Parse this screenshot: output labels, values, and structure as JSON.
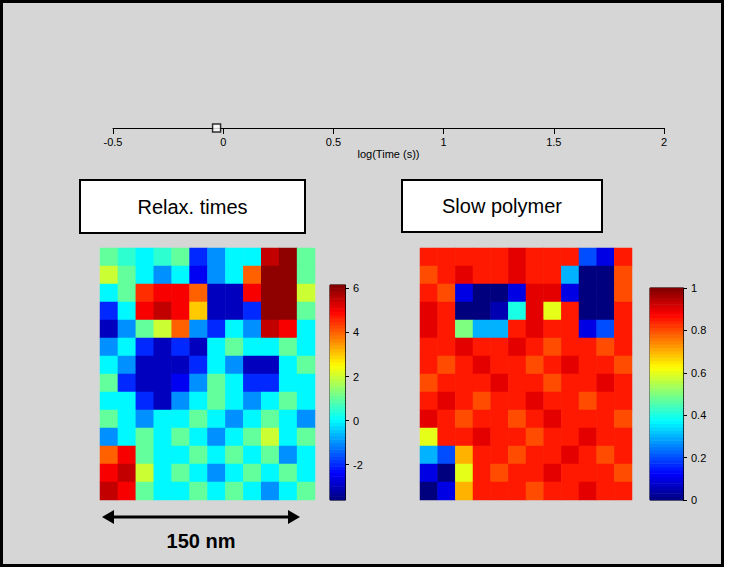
{
  "chart_data": [
    {
      "type": "scatter",
      "x": [
        -0.03
      ],
      "xlabel": "log(Time (s))",
      "xlim": [
        -0.5,
        2
      ],
      "xticks": [
        -0.5,
        0,
        0.5,
        1,
        1.5,
        2
      ],
      "marker": "square",
      "tick_labels": "x"
    },
    {
      "type": "heatmap",
      "title": "Relax. times",
      "cells": [
        [
          1,
          0.5,
          0,
          0.5,
          1,
          -2,
          -1,
          0,
          0,
          5.5,
          6,
          1
        ],
        [
          2,
          1,
          0,
          -1,
          0,
          -2.5,
          -1,
          0,
          4,
          6,
          6,
          1
        ],
        [
          0,
          1,
          4.5,
          5,
          5,
          4,
          -3,
          -3,
          5,
          6,
          6,
          2
        ],
        [
          -2,
          0,
          5,
          5.5,
          5,
          3,
          -3,
          -3,
          -2,
          6,
          6,
          1
        ],
        [
          -3,
          -1,
          1,
          2,
          4,
          -1,
          -2,
          0,
          -1,
          5.5,
          5,
          0
        ],
        [
          -1,
          0,
          -2,
          -3,
          -2,
          -3,
          0,
          1,
          0,
          0,
          1,
          0
        ],
        [
          0,
          -1,
          -3,
          -3,
          -3,
          -2,
          0,
          -1,
          -3,
          -3,
          0,
          1
        ],
        [
          1,
          -2,
          -3,
          -3,
          -2.5,
          -1,
          1,
          0,
          -2,
          -2,
          0,
          0
        ],
        [
          0,
          0,
          -2,
          -3,
          -1,
          0,
          1,
          0,
          -1,
          0,
          1,
          0
        ],
        [
          1,
          0,
          -1,
          0,
          0,
          1,
          0,
          -1,
          0,
          1,
          0,
          -1
        ],
        [
          -1,
          0,
          1,
          0,
          1,
          0,
          -1,
          0,
          1,
          2,
          0,
          1
        ],
        [
          4,
          5,
          1,
          0,
          0,
          1,
          0,
          1,
          0,
          1,
          -1,
          0
        ],
        [
          5,
          5.5,
          2,
          0,
          1,
          0,
          -1,
          0,
          1,
          0,
          1,
          0
        ],
        [
          5.5,
          5,
          1,
          0,
          0,
          1,
          0,
          1,
          0,
          -1,
          0,
          1
        ]
      ],
      "colorbar": {
        "lim": [
          -3.6,
          6.15
        ],
        "ticks": [
          -2,
          0,
          2,
          4,
          6
        ]
      }
    },
    {
      "type": "heatmap",
      "title": "Slow polymer",
      "cells": [
        [
          0.85,
          0.85,
          0.85,
          0.85,
          0.85,
          0.9,
          0.85,
          0.85,
          0.85,
          0.2,
          0.1,
          0.85
        ],
        [
          0.8,
          0.85,
          0.9,
          0.85,
          0.85,
          0.9,
          0.85,
          0.85,
          0.3,
          0,
          0,
          0.8
        ],
        [
          0.85,
          0.8,
          0.1,
          0,
          0,
          0.1,
          0.9,
          0.9,
          0.1,
          0,
          0,
          0.8
        ],
        [
          0.9,
          0.85,
          0,
          0,
          0.05,
          0.4,
          0.9,
          0.6,
          0.85,
          0,
          0,
          0.85
        ],
        [
          0.9,
          0.85,
          0.5,
          0.3,
          0.3,
          0.85,
          0.9,
          0.85,
          0.85,
          0.1,
          0.2,
          0.85
        ],
        [
          0.85,
          0.85,
          0.9,
          0.85,
          0.85,
          0.9,
          0.85,
          0.8,
          0.85,
          0.85,
          0.8,
          0.85
        ],
        [
          0.85,
          0.8,
          0.85,
          0.9,
          0.85,
          0.85,
          0.8,
          0.85,
          0.9,
          0.85,
          0.85,
          0.8
        ],
        [
          0.8,
          0.85,
          0.85,
          0.85,
          0.9,
          0.85,
          0.85,
          0.8,
          0.85,
          0.85,
          0.9,
          0.85
        ],
        [
          0.85,
          0.9,
          0.85,
          0.8,
          0.85,
          0.85,
          0.9,
          0.85,
          0.85,
          0.8,
          0.85,
          0.85
        ],
        [
          0.9,
          0.85,
          0.8,
          0.85,
          0.85,
          0.8,
          0.85,
          0.9,
          0.85,
          0.85,
          0.85,
          0.8
        ],
        [
          0.6,
          0.85,
          0.85,
          0.9,
          0.85,
          0.85,
          0.8,
          0.85,
          0.85,
          0.9,
          0.85,
          0.85
        ],
        [
          0.3,
          0.2,
          0.7,
          0.85,
          0.85,
          0.8,
          0.85,
          0.85,
          0.9,
          0.85,
          0.8,
          0.85
        ],
        [
          0.1,
          0,
          0.6,
          0.85,
          0.8,
          0.85,
          0.85,
          0.9,
          0.85,
          0.85,
          0.85,
          0.8
        ],
        [
          0,
          0.1,
          0.7,
          0.85,
          0.85,
          0.85,
          0.8,
          0.85,
          0.85,
          0.9,
          0.85,
          0.85
        ]
      ],
      "colorbar": {
        "lim": [
          0,
          1
        ],
        "ticks": [
          0,
          0.2,
          0.4,
          0.6,
          0.8,
          1
        ]
      }
    }
  ],
  "scale_bar": {
    "label": "150 nm"
  }
}
